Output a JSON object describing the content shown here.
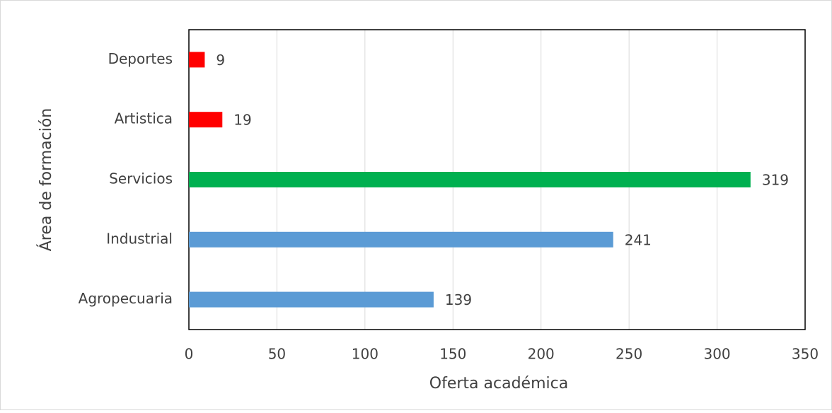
{
  "chart_data": {
    "type": "barh",
    "xlabel": "Oferta académica",
    "ylabel": "Área de formación",
    "categories": [
      "Deportes",
      "Artistica",
      "Servicios",
      "Industrial",
      "Agropecuaria"
    ],
    "values": [
      9,
      19,
      319,
      241,
      139
    ],
    "colors": [
      "#ff0000",
      "#ff0000",
      "#00b050",
      "#5b9bd5",
      "#5b9bd5"
    ],
    "xlim": [
      0,
      350
    ],
    "xticks": [
      0,
      50,
      100,
      150,
      200,
      250,
      300,
      350
    ],
    "grid": true
  }
}
